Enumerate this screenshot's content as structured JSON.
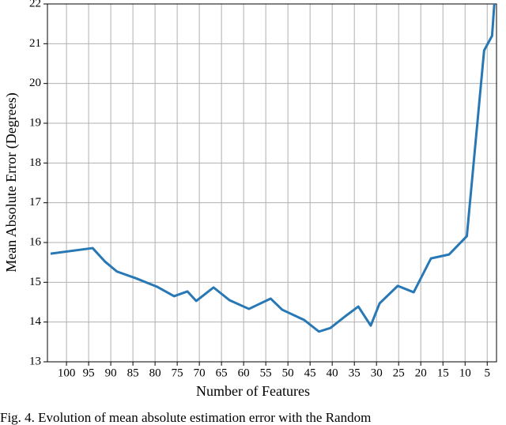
{
  "chart_data": {
    "type": "line",
    "xlabel": "Number of Features",
    "ylabel": "Mean Absolute Error (Degrees)",
    "caption": "Fig. 4.   Evolution of mean absolute estimation error with the Random",
    "x": [
      103.6,
      94.1,
      91.3,
      88.6,
      84.3,
      79.6,
      75.7,
      72.7,
      70.7,
      66.8,
      63.2,
      58.8,
      53.9,
      51.3,
      46.3,
      43.0,
      40.4,
      37.0,
      34.1,
      31.3,
      29.3,
      25.2,
      21.6,
      17.7,
      13.6,
      9.6,
      5.7,
      3.9,
      3.4
    ],
    "series": [
      {
        "color": "#2878b5",
        "values": [
          15.72,
          15.86,
          15.52,
          15.27,
          15.1,
          14.89,
          14.65,
          14.77,
          14.53,
          14.87,
          14.55,
          14.33,
          14.59,
          14.31,
          14.05,
          13.76,
          13.85,
          14.15,
          14.39,
          13.91,
          14.47,
          14.91,
          14.75,
          15.6,
          15.7,
          16.16,
          20.83,
          21.2,
          22.0
        ]
      }
    ],
    "xlim": [
      104.3,
      2.9
    ],
    "ylim": [
      13,
      22
    ],
    "xticks": [
      100,
      95,
      90,
      85,
      80,
      75,
      70,
      65,
      60,
      55,
      50,
      45,
      40,
      35,
      30,
      25,
      20,
      15,
      10,
      5
    ],
    "yticks": [
      13,
      14,
      15,
      16,
      17,
      18,
      19,
      20,
      21,
      22
    ],
    "grid": true
  }
}
